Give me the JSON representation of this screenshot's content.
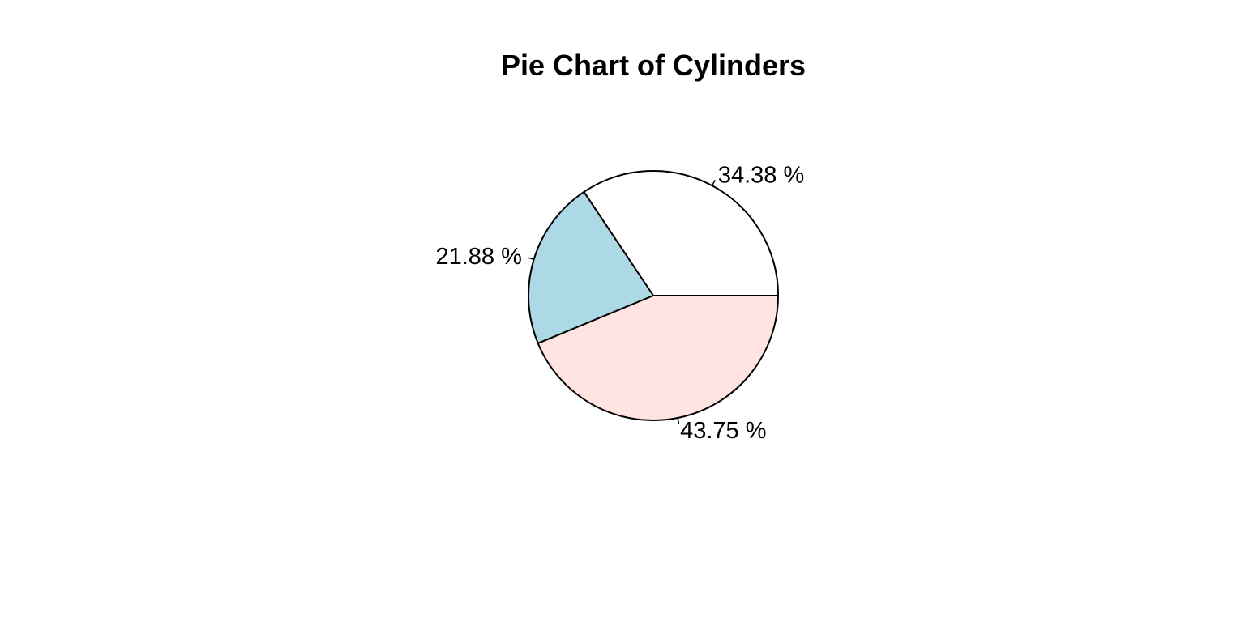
{
  "chart_data": {
    "type": "pie",
    "title": "Pie Chart of Cylinders",
    "start_angle_deg": 0,
    "direction": "counterclockwise",
    "slices": [
      {
        "value": 34.38,
        "label": "34.38 %",
        "color": "#ffffff"
      },
      {
        "value": 21.88,
        "label": "21.88 %",
        "color": "#add8e6"
      },
      {
        "value": 43.75,
        "label": "43.75 %",
        "color": "#ffe4e1"
      }
    ]
  }
}
